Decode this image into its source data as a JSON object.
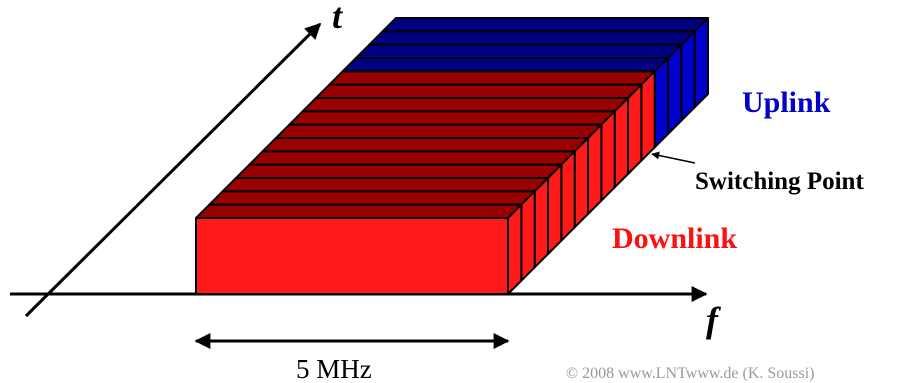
{
  "labels": {
    "time_axis": "t",
    "freq_axis": "f",
    "uplink": "Uplink",
    "switching_point": "Switching Point",
    "downlink": "Downlink",
    "bandwidth": "5 MHz",
    "copyright": "© 2008 www.LNTwww.de (K. Soussi)"
  },
  "frame": {
    "total_slots": 15,
    "downlink_slots": 11,
    "uplink_slots": 4
  },
  "colors": {
    "downlink_face": "#ff1a1a",
    "downlink_top": "#990000",
    "uplink_top": "#000080",
    "uplink_side": "#0000cc",
    "uplink_text": "#0000c8",
    "downlink_text": "#ff1010",
    "outline": "#000000"
  }
}
